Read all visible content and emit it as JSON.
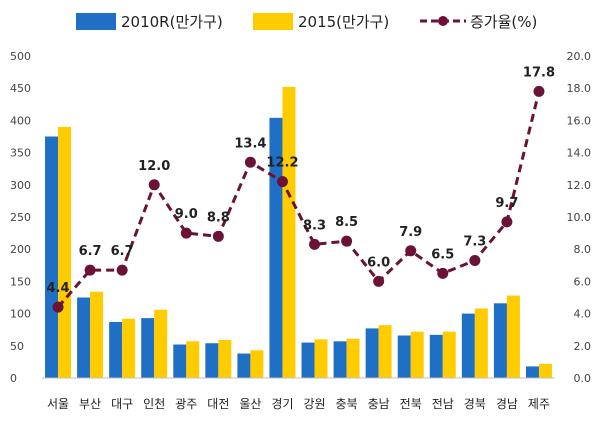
{
  "chart_data": {
    "type": "bar",
    "categories": [
      "서울",
      "부산",
      "대구",
      "인천",
      "광주",
      "대전",
      "울산",
      "경기",
      "강원",
      "충북",
      "충남",
      "전북",
      "전남",
      "경북",
      "경남",
      "제주"
    ],
    "series": [
      {
        "name": "2010R(만가구)",
        "type": "bar",
        "axis": "left",
        "color": "#1f6fc5",
        "values": [
          375,
          125,
          87,
          93,
          52,
          54,
          38,
          404,
          55,
          57,
          77,
          66,
          67,
          100,
          116,
          18
        ]
      },
      {
        "name": "2015(만가구)",
        "type": "bar",
        "axis": "left",
        "color": "#ffcc00",
        "values": [
          390,
          134,
          92,
          106,
          57,
          59,
          43,
          452,
          60,
          61,
          82,
          72,
          72,
          108,
          128,
          22
        ]
      },
      {
        "name": "증가율(%)",
        "type": "line",
        "axis": "right",
        "color": "#6b1237",
        "values": [
          4.4,
          6.7,
          6.7,
          12.0,
          9.0,
          8.8,
          13.4,
          12.2,
          8.3,
          8.5,
          6.0,
          7.9,
          6.5,
          7.3,
          9.7,
          17.8
        ],
        "labels": [
          "4.4",
          "6.7",
          "6.7",
          "12.0",
          "9.0",
          "8.8",
          "13.4",
          "12.2",
          "8.3",
          "8.5",
          "6.0",
          "7.9",
          "6.5",
          "7.3",
          "9.7",
          "17.8"
        ]
      }
    ],
    "y_left": {
      "min": 0,
      "max": 500,
      "ticks": [
        "0",
        "50",
        "100",
        "150",
        "200",
        "250",
        "300",
        "350",
        "400",
        "450",
        "500"
      ]
    },
    "y_right": {
      "min": 0,
      "max": 20,
      "ticks": [
        "0.0",
        "2.0",
        "4.0",
        "6.0",
        "8.0",
        "10.0",
        "12.0",
        "14.0",
        "16.0",
        "18.0",
        "20.0"
      ]
    },
    "legend": {
      "position": "top"
    },
    "grid": false
  }
}
